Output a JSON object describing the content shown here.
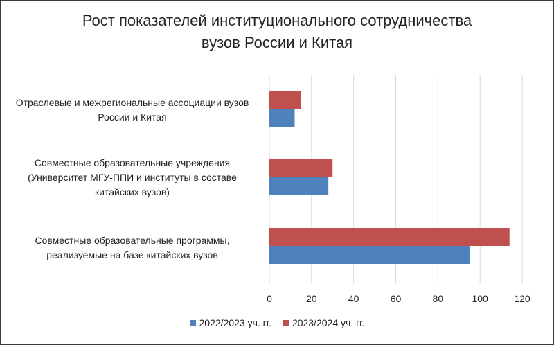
{
  "chart_data": {
    "type": "bar",
    "orientation": "horizontal",
    "title_lines": [
      "Рост показателей  институционального сотрудничества",
      "вузов России  и  Китая"
    ],
    "categories": [
      [
        "Отраслевые и межрегиональные ассоциации вузов",
        "России  и Китая"
      ],
      [
        "Совместные  образовательные  учреждения",
        "(Университет МГУ-ППИ и институты в составе",
        "китайских вузов)"
      ],
      [
        "Совместные  образовательные  программы,",
        "реализуемые  на базе китайских вузов"
      ]
    ],
    "series": [
      {
        "name": "2022/2023 уч. гг.",
        "color": "#4f81bd",
        "values": [
          12,
          28,
          95
        ]
      },
      {
        "name": "2023/2024 уч. гг.",
        "color": "#c0504d",
        "values": [
          15,
          30,
          114
        ]
      }
    ],
    "xlim": [
      0,
      120
    ],
    "xticks": [
      "0",
      "20",
      "40",
      "60",
      "80",
      "100",
      "120"
    ],
    "grid": true,
    "legend_position": "bottom"
  }
}
